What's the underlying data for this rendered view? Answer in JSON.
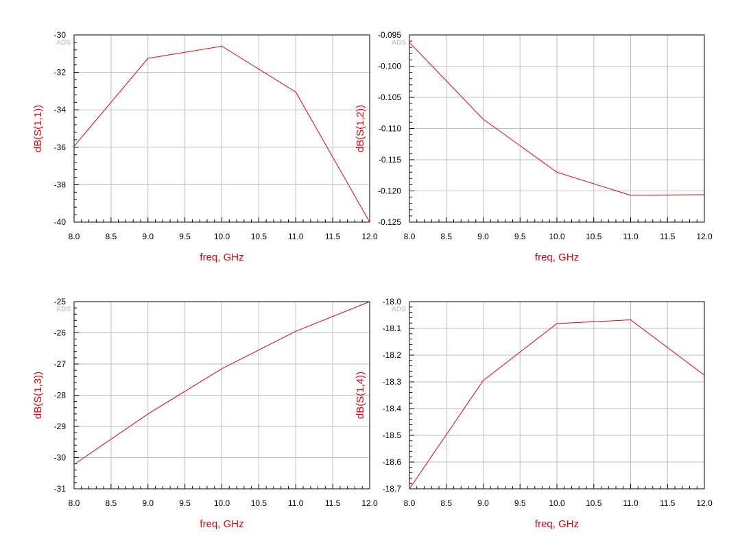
{
  "watermark": "ADS",
  "colors": {
    "trace": "#e8000b",
    "label": "#e8000b",
    "grid": "#bfbfbf",
    "axis": "#000000",
    "watermark": "#c8c8c8"
  },
  "chart_data": [
    {
      "type": "line",
      "xlabel": "freq, GHz",
      "ylabel": "dB(S(1,1))",
      "xlim": [
        8.0,
        12.0
      ],
      "ylim": [
        -40,
        -30
      ],
      "xticks": [
        8.0,
        8.5,
        9.0,
        9.5,
        10.0,
        10.5,
        11.0,
        11.5,
        12.0
      ],
      "xtick_labels": [
        "8.0",
        "8.5",
        "9.0",
        "9.5",
        "10.0",
        "10.5",
        "11.0",
        "11.5",
        "12.0"
      ],
      "yticks": [
        -30,
        -32,
        -34,
        -36,
        -38,
        -40
      ],
      "ytick_labels": [
        "-30",
        "-32",
        "-34",
        "-36",
        "-38",
        "-40"
      ],
      "grid": true,
      "series": [
        {
          "x": [
            8.0,
            9.0,
            10.0,
            11.0,
            12.0
          ],
          "y": [
            -35.95,
            -31.25,
            -30.6,
            -33.05,
            -40.0
          ]
        }
      ]
    },
    {
      "type": "line",
      "xlabel": "freq, GHz",
      "ylabel": "dB(S(1,2))",
      "xlim": [
        8.0,
        12.0
      ],
      "ylim": [
        -0.125,
        -0.095
      ],
      "xticks": [
        8.0,
        8.5,
        9.0,
        9.5,
        10.0,
        10.5,
        11.0,
        11.5,
        12.0
      ],
      "xtick_labels": [
        "8.0",
        "8.5",
        "9.0",
        "9.5",
        "10.0",
        "10.5",
        "11.0",
        "11.5",
        "12.0"
      ],
      "yticks": [
        -0.095,
        -0.1,
        -0.105,
        -0.11,
        -0.115,
        -0.12,
        -0.125
      ],
      "ytick_labels": [
        "-0.095",
        "-0.100",
        "-0.105",
        "-0.110",
        "-0.115",
        "-0.120",
        "-0.125"
      ],
      "grid": true,
      "series": [
        {
          "x": [
            8.0,
            9.0,
            10.0,
            11.0,
            12.0
          ],
          "y": [
            -0.0962,
            -0.1085,
            -0.117,
            -0.1207,
            -0.1206
          ]
        }
      ]
    },
    {
      "type": "line",
      "xlabel": "freq, GHz",
      "ylabel": "dB(S(1,3))",
      "xlim": [
        8.0,
        12.0
      ],
      "ylim": [
        -31,
        -25
      ],
      "xticks": [
        8.0,
        8.5,
        9.0,
        9.5,
        10.0,
        10.5,
        11.0,
        11.5,
        12.0
      ],
      "xtick_labels": [
        "8.0",
        "8.5",
        "9.0",
        "9.5",
        "10.0",
        "10.5",
        "11.0",
        "11.5",
        "12.0"
      ],
      "yticks": [
        -25,
        -26,
        -27,
        -28,
        -29,
        -30,
        -31
      ],
      "ytick_labels": [
        "-25",
        "-26",
        "-27",
        "-28",
        "-29",
        "-30",
        "-31"
      ],
      "grid": true,
      "series": [
        {
          "x": [
            8.0,
            9.0,
            10.0,
            11.0,
            12.0
          ],
          "y": [
            -30.22,
            -28.6,
            -27.15,
            -25.95,
            -25.0
          ]
        }
      ]
    },
    {
      "type": "line",
      "xlabel": "freq, GHz",
      "ylabel": "dB(S(1,4))",
      "xlim": [
        8.0,
        12.0
      ],
      "ylim": [
        -18.7,
        -18.0
      ],
      "xticks": [
        8.0,
        8.5,
        9.0,
        9.5,
        10.0,
        10.5,
        11.0,
        11.5,
        12.0
      ],
      "xtick_labels": [
        "8.0",
        "8.5",
        "9.0",
        "9.5",
        "10.0",
        "10.5",
        "11.0",
        "11.5",
        "12.0"
      ],
      "yticks": [
        -18.0,
        -18.1,
        -18.2,
        -18.3,
        -18.4,
        -18.5,
        -18.6,
        -18.7
      ],
      "ytick_labels": [
        "-18.0",
        "-18.1",
        "-18.2",
        "-18.3",
        "-18.4",
        "-18.5",
        "-18.6",
        "-18.7"
      ],
      "grid": true,
      "series": [
        {
          "x": [
            8.0,
            9.0,
            10.0,
            11.0,
            12.0
          ],
          "y": [
            -18.7,
            -18.295,
            -18.082,
            -18.068,
            -18.275
          ]
        }
      ]
    }
  ]
}
